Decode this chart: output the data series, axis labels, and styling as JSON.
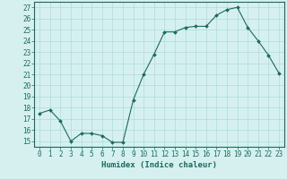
{
  "x": [
    0,
    1,
    2,
    3,
    4,
    5,
    6,
    7,
    8,
    9,
    10,
    11,
    12,
    13,
    14,
    15,
    16,
    17,
    18,
    19,
    20,
    21,
    22,
    23
  ],
  "y": [
    17.5,
    17.8,
    16.8,
    15.0,
    15.7,
    15.7,
    15.5,
    14.9,
    14.9,
    18.7,
    21.0,
    22.8,
    24.8,
    24.8,
    25.2,
    25.3,
    25.3,
    26.3,
    26.8,
    27.0,
    25.2,
    24.0,
    22.7,
    21.1
  ],
  "line_color": "#1a6b5a",
  "marker": "D",
  "marker_size": 2,
  "bg_color": "#d6f0f0",
  "grid_color": "#aadddd",
  "xlabel": "Humidex (Indice chaleur)",
  "ylabel": "",
  "xlim": [
    -0.5,
    23.5
  ],
  "ylim": [
    14.5,
    27.5
  ],
  "yticks": [
    15,
    16,
    17,
    18,
    19,
    20,
    21,
    22,
    23,
    24,
    25,
    26,
    27
  ],
  "xticks": [
    0,
    1,
    2,
    3,
    4,
    5,
    6,
    7,
    8,
    9,
    10,
    11,
    12,
    13,
    14,
    15,
    16,
    17,
    18,
    19,
    20,
    21,
    22,
    23
  ],
  "tick_color": "#1a6b5a",
  "axis_color": "#1a6b5a",
  "label_fontsize": 6.5,
  "tick_fontsize": 5.5
}
